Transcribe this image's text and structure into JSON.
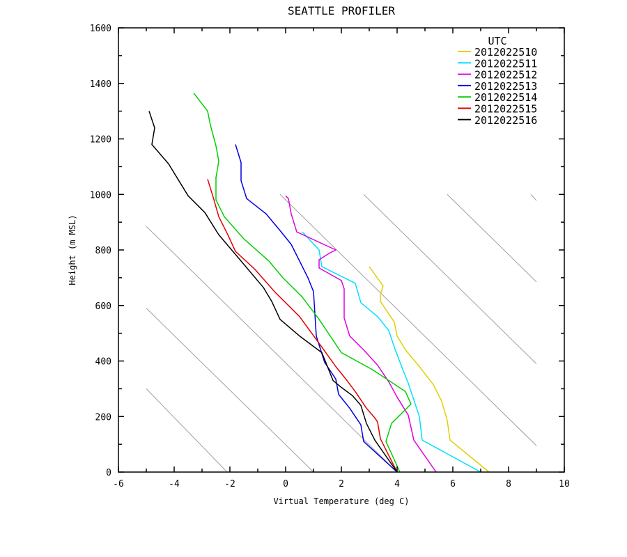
{
  "chart_data": {
    "type": "line",
    "title": "SEATTLE PROFILER",
    "xlabel": "Virtual Temperature (deg C)",
    "ylabel": "Height (m MSL)",
    "xlim": [
      -6,
      10
    ],
    "ylim": [
      0,
      1600
    ],
    "xticks": [
      "-6",
      "-4",
      "-2",
      "0",
      "2",
      "4",
      "6",
      "8",
      "10"
    ],
    "yticks": [
      "0",
      "200",
      "400",
      "600",
      "800",
      "1000",
      "1200",
      "1400",
      "1600"
    ],
    "legend_title": "UTC",
    "legend_position": "top-right",
    "background_lines": [
      {
        "x1": -5,
        "y1": 300,
        "x2": -2.1,
        "y2": 0
      },
      {
        "x1": -5,
        "y1": 590,
        "x2": 1.0,
        "y2": 0
      },
      {
        "x1": -5,
        "y1": 885,
        "x2": 4.0,
        "y2": 0
      },
      {
        "x1": -0.2,
        "y1": 1000,
        "x2": 9.0,
        "y2": 95
      },
      {
        "x1": 2.8,
        "y1": 1000,
        "x2": 9.0,
        "y2": 390
      },
      {
        "x1": 5.8,
        "y1": 1000,
        "x2": 9.0,
        "y2": 685
      },
      {
        "x1": 8.8,
        "y1": 1000,
        "x2": 9.0,
        "y2": 978
      }
    ],
    "series": [
      {
        "name": "2012022510",
        "color": "#e0d000",
        "points": [
          [
            7.3,
            0
          ],
          [
            5.9,
            115
          ],
          [
            5.8,
            185
          ],
          [
            5.6,
            255
          ],
          [
            5.3,
            315
          ],
          [
            4.8,
            380
          ],
          [
            4.3,
            440
          ],
          [
            4.0,
            490
          ],
          [
            3.9,
            540
          ],
          [
            3.4,
            615
          ],
          [
            3.4,
            640
          ],
          [
            3.5,
            670
          ],
          [
            3.0,
            740
          ]
        ]
      },
      {
        "name": "2012022511",
        "color": "#00e0ff",
        "points": [
          [
            7.0,
            0
          ],
          [
            4.9,
            115
          ],
          [
            4.8,
            200
          ],
          [
            4.6,
            260
          ],
          [
            4.4,
            320
          ],
          [
            4.2,
            370
          ],
          [
            3.9,
            450
          ],
          [
            3.7,
            510
          ],
          [
            3.3,
            560
          ],
          [
            2.7,
            610
          ],
          [
            2.5,
            680
          ],
          [
            1.8,
            715
          ],
          [
            1.3,
            740
          ],
          [
            1.2,
            800
          ],
          [
            0.6,
            865
          ]
        ]
      },
      {
        "name": "2012022512",
        "color": "#e000e0",
        "points": [
          [
            5.4,
            0
          ],
          [
            4.6,
            115
          ],
          [
            4.4,
            205
          ],
          [
            4.0,
            270
          ],
          [
            3.7,
            325
          ],
          [
            3.3,
            385
          ],
          [
            2.8,
            440
          ],
          [
            2.3,
            490
          ],
          [
            2.1,
            555
          ],
          [
            2.1,
            600
          ],
          [
            2.1,
            660
          ],
          [
            2.0,
            690
          ],
          [
            1.2,
            735
          ],
          [
            1.2,
            765
          ],
          [
            1.6,
            790
          ],
          [
            1.8,
            800
          ],
          [
            0.4,
            865
          ],
          [
            0.2,
            930
          ],
          [
            0.1,
            985
          ],
          [
            0.0,
            995
          ]
        ]
      },
      {
        "name": "2012022513",
        "color": "#0000e0",
        "points": [
          [
            4.0,
            0
          ],
          [
            2.8,
            110
          ],
          [
            2.7,
            170
          ],
          [
            2.3,
            230
          ],
          [
            1.9,
            280
          ],
          [
            1.8,
            335
          ],
          [
            1.4,
            395
          ],
          [
            1.1,
            490
          ],
          [
            1.0,
            650
          ],
          [
            0.8,
            700
          ],
          [
            0.6,
            740
          ],
          [
            0.2,
            820
          ],
          [
            -0.2,
            870
          ],
          [
            -0.7,
            930
          ],
          [
            -1.4,
            985
          ],
          [
            -1.6,
            1050
          ],
          [
            -1.6,
            1115
          ],
          [
            -1.8,
            1180
          ]
        ]
      },
      {
        "name": "2012022514",
        "color": "#00d000",
        "points": [
          [
            4.1,
            0
          ],
          [
            3.6,
            110
          ],
          [
            3.8,
            175
          ],
          [
            4.5,
            245
          ],
          [
            4.3,
            290
          ],
          [
            4.0,
            310
          ],
          [
            3.1,
            370
          ],
          [
            2.0,
            430
          ],
          [
            1.2,
            550
          ],
          [
            0.6,
            630
          ],
          [
            -0.1,
            700
          ],
          [
            -0.6,
            760
          ],
          [
            -1.5,
            840
          ],
          [
            -2.2,
            920
          ],
          [
            -2.5,
            980
          ],
          [
            -2.5,
            1060
          ],
          [
            -2.4,
            1120
          ],
          [
            -2.5,
            1175
          ],
          [
            -2.7,
            1250
          ],
          [
            -2.8,
            1300
          ],
          [
            -3.3,
            1365
          ]
        ]
      },
      {
        "name": "2012022515",
        "color": "#e00000",
        "points": [
          [
            4.0,
            0
          ],
          [
            3.4,
            120
          ],
          [
            3.3,
            180
          ],
          [
            3.2,
            195
          ],
          [
            2.9,
            230
          ],
          [
            2.5,
            290
          ],
          [
            2.2,
            330
          ],
          [
            1.8,
            380
          ],
          [
            1.3,
            450
          ],
          [
            0.5,
            560
          ],
          [
            -0.4,
            650
          ],
          [
            -1.1,
            730
          ],
          [
            -1.8,
            795
          ],
          [
            -2.1,
            860
          ],
          [
            -2.4,
            920
          ],
          [
            -2.6,
            990
          ],
          [
            -2.8,
            1055
          ]
        ]
      },
      {
        "name": "2012022516",
        "color": "#000000",
        "points": [
          [
            4.0,
            0
          ],
          [
            3.2,
            115
          ],
          [
            2.9,
            175
          ],
          [
            2.7,
            240
          ],
          [
            2.4,
            275
          ],
          [
            2.0,
            305
          ],
          [
            1.7,
            330
          ],
          [
            1.3,
            430
          ],
          [
            0.5,
            490
          ],
          [
            -0.2,
            550
          ],
          [
            -0.5,
            615
          ],
          [
            -0.8,
            665
          ],
          [
            -1.6,
            760
          ],
          [
            -2.4,
            855
          ],
          [
            -2.9,
            935
          ],
          [
            -3.5,
            995
          ],
          [
            -4.2,
            1110
          ],
          [
            -4.8,
            1180
          ],
          [
            -4.7,
            1240
          ],
          [
            -4.9,
            1300
          ]
        ]
      }
    ]
  }
}
